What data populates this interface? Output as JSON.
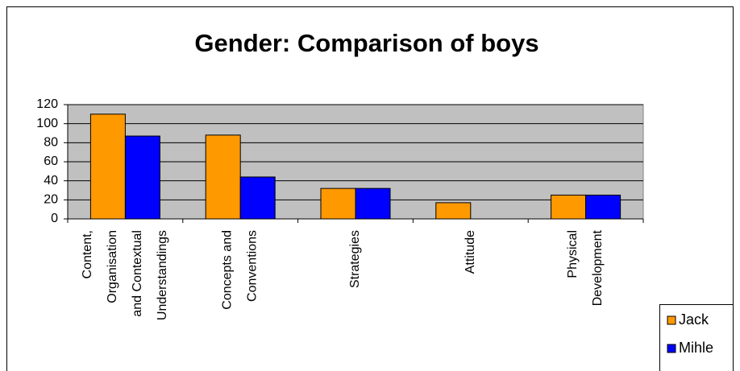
{
  "chart_data": {
    "type": "bar",
    "title": "Gender: Comparison of boys",
    "categories": [
      "Content, Organisation and Contextual Understandings",
      "Concepts and Conventions",
      "Strategies",
      "Attitude",
      "Physical Development"
    ],
    "series": [
      {
        "name": "Jack",
        "color": "#ff9900",
        "values": [
          110,
          88,
          32,
          17,
          25
        ]
      },
      {
        "name": "Mihle",
        "color": "#0000ff",
        "values": [
          87,
          44,
          32,
          0,
          25
        ]
      }
    ],
    "ylim": [
      0,
      120
    ],
    "yticks": [
      0,
      20,
      40,
      60,
      80,
      100,
      120
    ],
    "grid": true,
    "legend": "bottom-right"
  }
}
